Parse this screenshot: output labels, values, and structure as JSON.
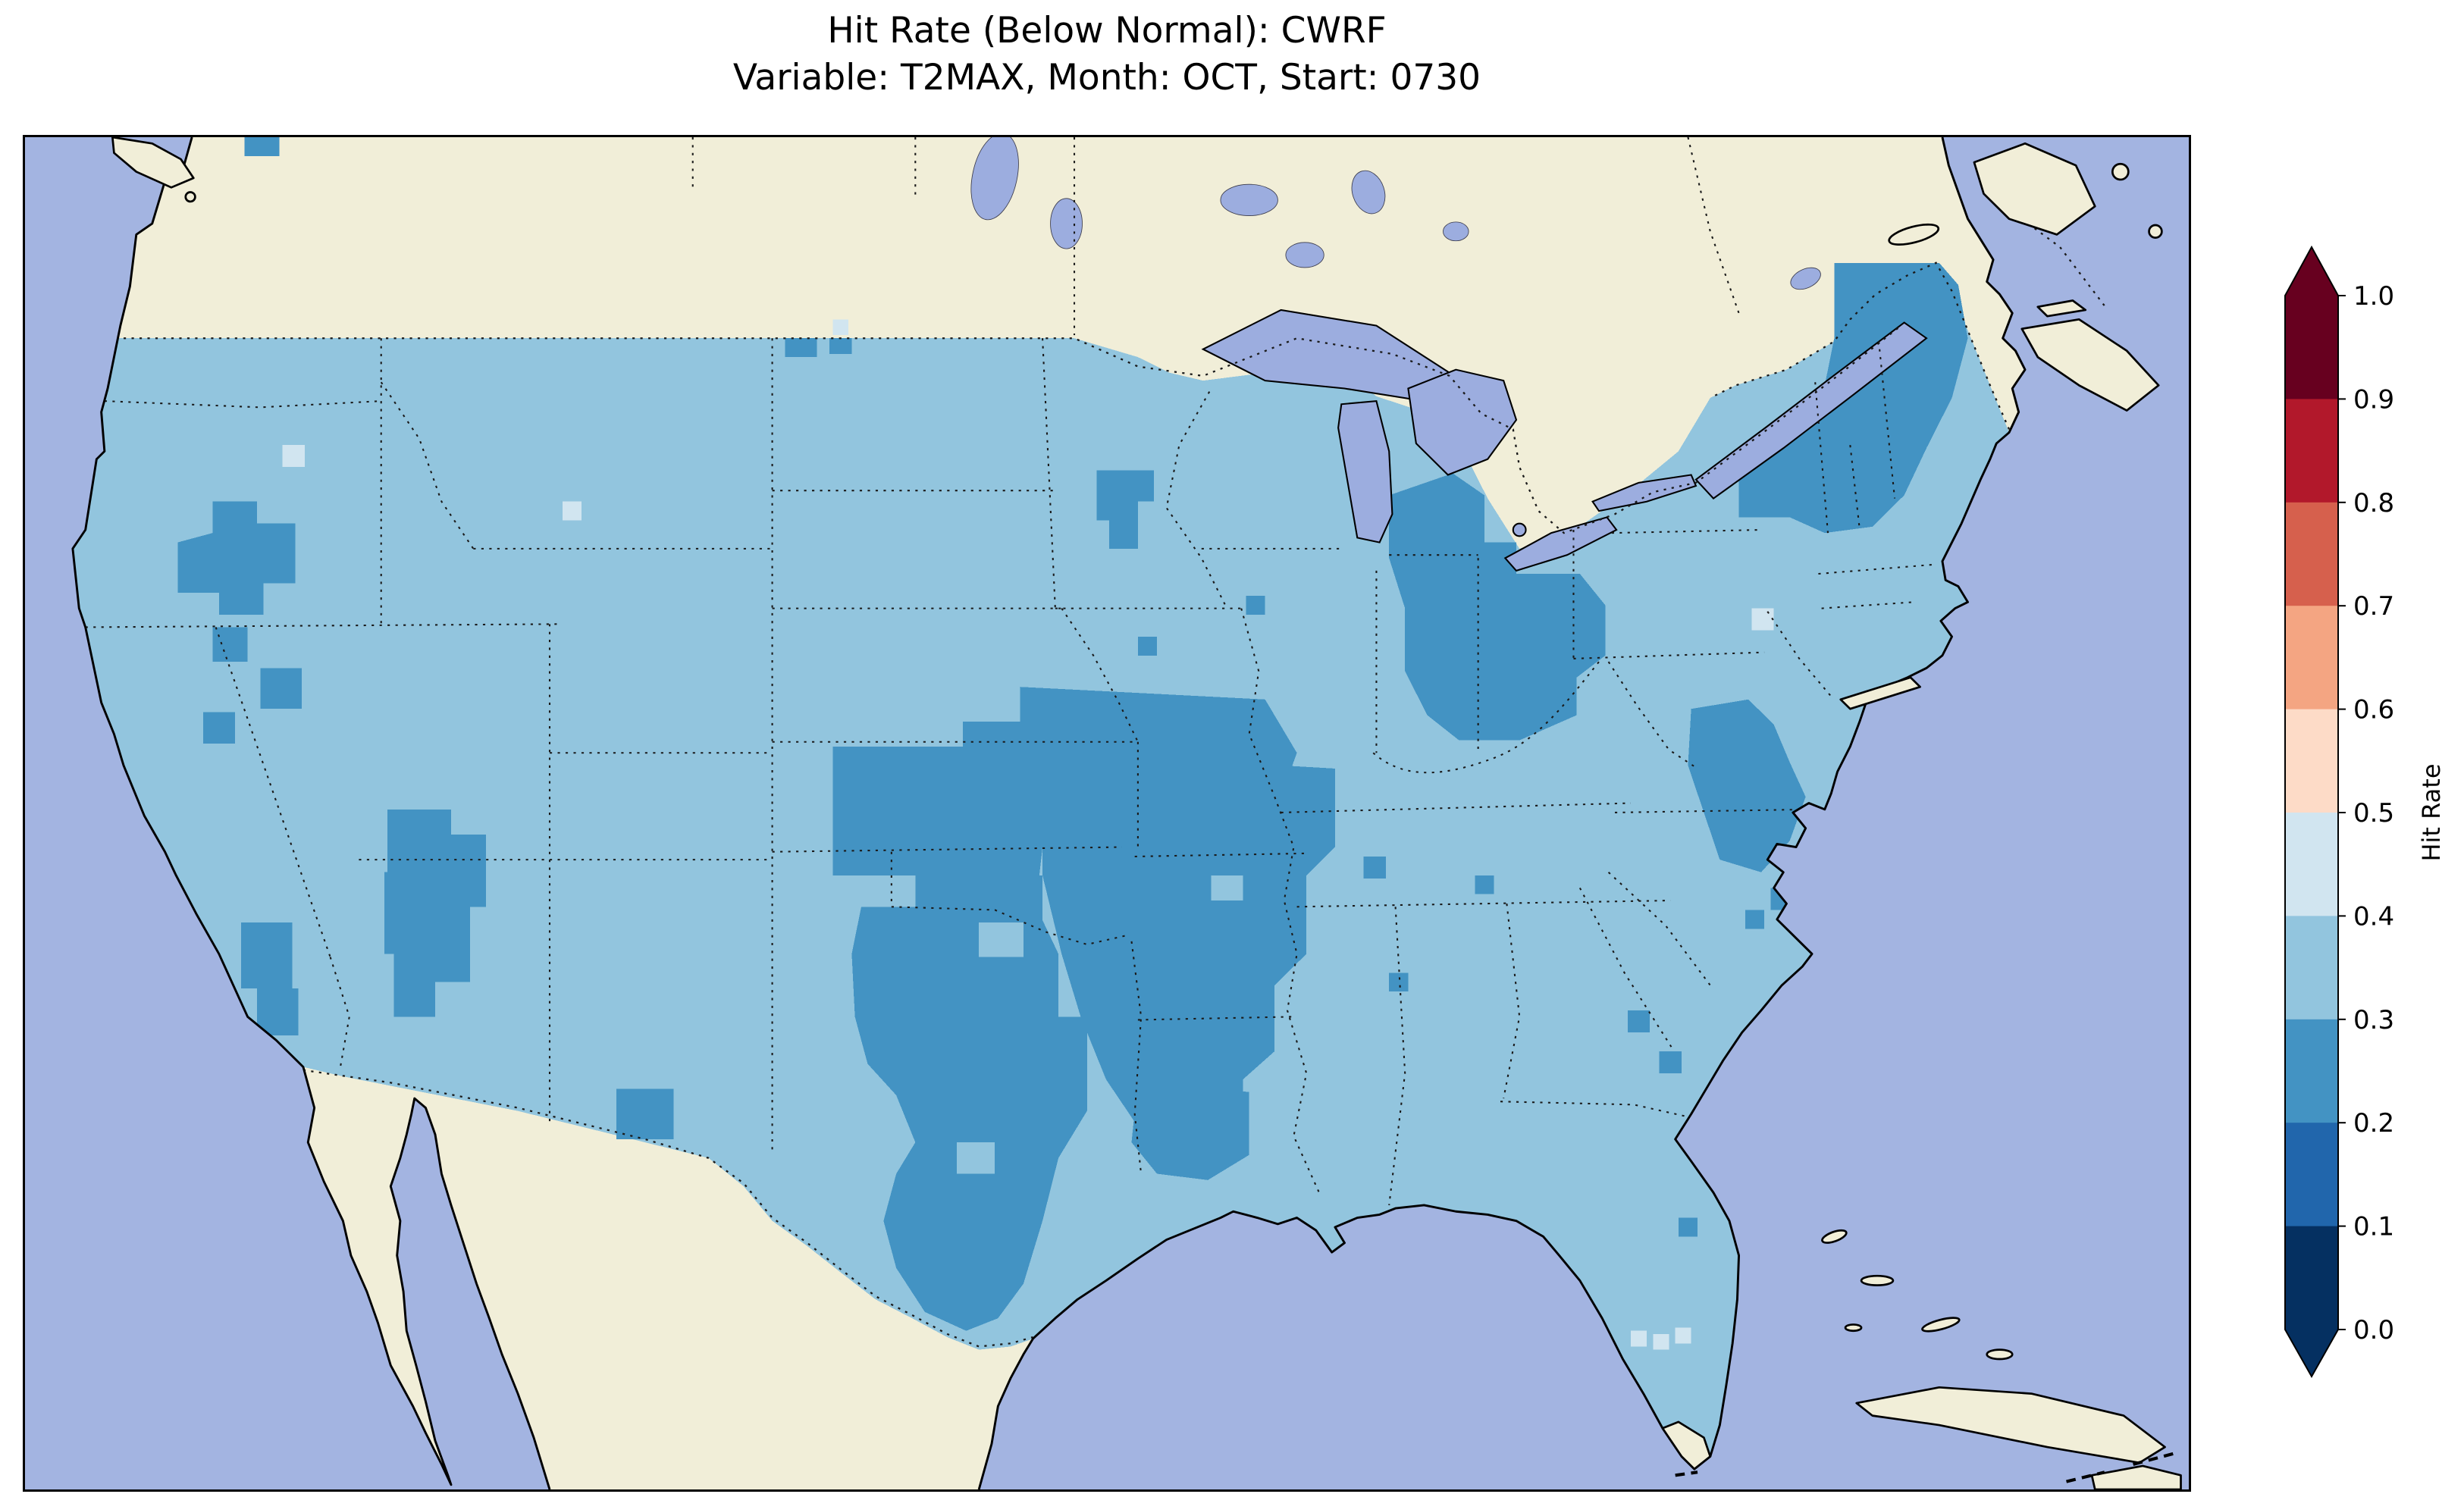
{
  "title": {
    "line1": "Hit Rate (Below Normal): CWRF",
    "line2": "Variable: T2MAX, Month: OCT, Start: 0730"
  },
  "colorbar": {
    "label": "Hit Rate",
    "ticks": [
      "1.0",
      "0.9",
      "0.8",
      "0.7",
      "0.6",
      "0.5",
      "0.4",
      "0.3",
      "0.2",
      "0.1",
      "0.0"
    ],
    "bin_colors_low_to_high": [
      "#053061",
      "#2166ac",
      "#4393c3",
      "#92c5de",
      "#d1e5f0",
      "#fddbc7",
      "#f4a582",
      "#d6604d",
      "#b2182b",
      "#67001f"
    ],
    "extend_low_color": "#053061",
    "extend_high_color": "#67001f"
  },
  "map": {
    "ocean_color": "#a3b4e1",
    "land_color": "#f1eed8",
    "lake_color": "#9caddf",
    "base_value_color": "#92c5de",
    "low_patch_color": "#4393c3",
    "mid_cell_color": "#d1e5f0"
  },
  "chart_data": {
    "type": "heatmap",
    "title": "Hit Rate (Below Normal): CWRF",
    "subtitle": "Variable: T2MAX, Month: OCT, Start: 0730",
    "metric": "Hit Rate (Below Normal)",
    "model": "CWRF",
    "variable": "T2MAX",
    "month": "OCT",
    "start": "0730",
    "colorbar_label": "Hit Rate",
    "value_range": [
      0.0,
      1.0
    ],
    "bin_edges": [
      0.0,
      0.1,
      0.2,
      0.3,
      0.4,
      0.5,
      0.6,
      0.7,
      0.8,
      0.9,
      1.0
    ],
    "region": "Contiguous United States",
    "legend_position": "right",
    "summary": [
      {
        "area": "Most of the contiguous U.S.",
        "hit_rate": "0.3-0.4"
      },
      {
        "area": "Maine, New England and northern New York",
        "hit_rate": "0.2-0.3"
      },
      {
        "area": "Lower Michigan, Indiana, Ohio, western Kentucky",
        "hit_rate": "0.2-0.3"
      },
      {
        "area": "Kansas-Oklahoma-Texas-Arkansas-Mississippi valley",
        "hit_rate": "0.2-0.3"
      },
      {
        "area": "Louisiana and western Tennessee",
        "hit_rate": "0.2-0.3"
      },
      {
        "area": "Utah and Great Basin patches",
        "hit_rate": "0.2-0.3"
      },
      {
        "area": "Central Idaho patch",
        "hit_rate": "0.2-0.3"
      },
      {
        "area": "Eastern Virginia and Carolina coast",
        "hit_rate": "0.2-0.3"
      },
      {
        "area": "Scattered cells (Nevada, Wyoming, Maryland, south Florida)",
        "hit_rate": "0.4-0.5"
      }
    ]
  }
}
